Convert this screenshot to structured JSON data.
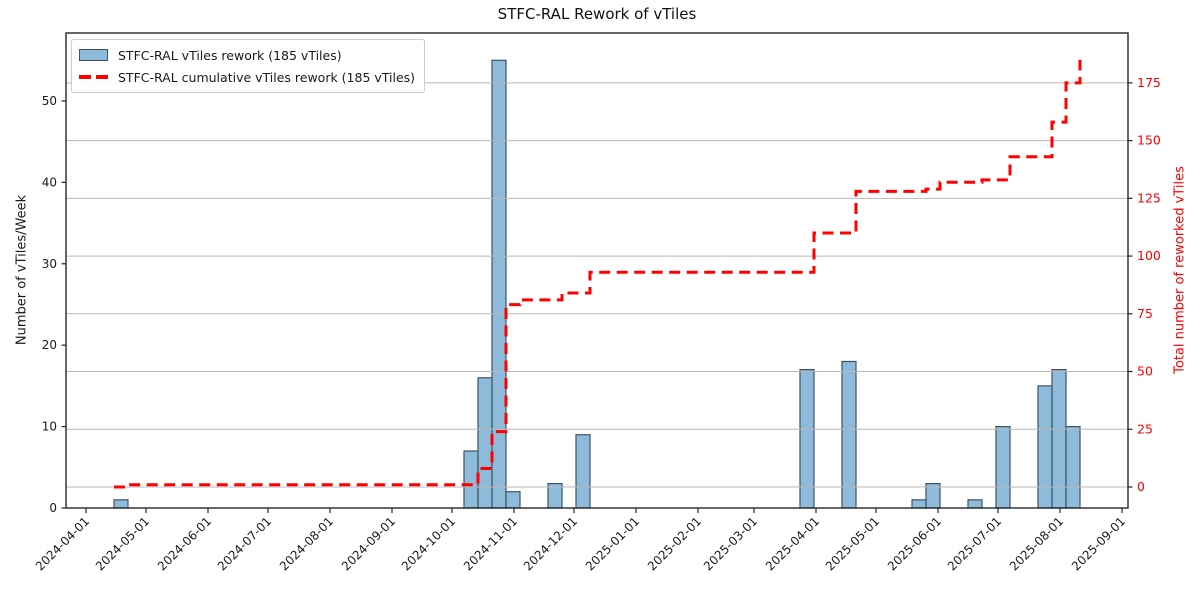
{
  "figure": {
    "title": "STFC-RAL Rework of vTiles"
  },
  "legend": {
    "entries": [
      {
        "label": "STFC-RAL vTiles rework (185 vTiles)",
        "swatch": "bar-patch"
      },
      {
        "label": "STFC-RAL cumulative vTiles rework (185 vTiles)",
        "swatch": "red-dashed-line"
      }
    ]
  },
  "colors": {
    "bar_fill": "#8fbbda",
    "bar_edge": "#3f5265",
    "cumulative_line": "#ff0000",
    "grid": "#b8b8b8",
    "spine": "#262626",
    "tick_text": "#1a1a1a",
    "right_axis_text": "#ff0000",
    "background": "#ffffff"
  },
  "chart_data": {
    "type": "bar",
    "title": "STFC-RAL Rework of vTiles",
    "xlabel": "",
    "ylabel_left": "Number of vTiles/Week",
    "ylabel_right": "Total number of reworked vTiles",
    "legend_position": "upper-left",
    "grid": "horizontal gridlines at right-axis ticks, drawn over bars",
    "bar_width_days": 7,
    "x_range": [
      "2024-03-22",
      "2025-09-04"
    ],
    "left_range": [
      0,
      58.35
    ],
    "right_range": [
      -9.1,
      196.6
    ],
    "left_ticks": [
      0,
      10,
      20,
      30,
      40,
      50
    ],
    "right_ticks": [
      0,
      25,
      50,
      75,
      100,
      125,
      150,
      175
    ],
    "x_tick_labels": [
      "2024-04-01",
      "2024-05-01",
      "2024-06-01",
      "2024-07-01",
      "2024-08-01",
      "2024-09-01",
      "2024-10-01",
      "2024-11-01",
      "2024-12-01",
      "2025-01-01",
      "2025-02-01",
      "2025-03-01",
      "2025-04-01",
      "2025-05-01",
      "2025-06-01",
      "2025-07-01",
      "2025-08-01",
      "2025-09-01"
    ],
    "series": [
      {
        "name": "STFC-RAL vTiles rework (185 vTiles)",
        "type": "bar",
        "total": 185
      },
      {
        "name": "STFC-RAL cumulative vTiles rework (185 vTiles)",
        "type": "step-line-dashed",
        "total": 185
      }
    ],
    "weekly_points": [
      {
        "week_start": "2024-04-15",
        "value": 1,
        "cumulative": 1
      },
      {
        "week_start": "2024-10-07",
        "value": 7,
        "cumulative": 8
      },
      {
        "week_start": "2024-10-14",
        "value": 16,
        "cumulative": 24
      },
      {
        "week_start": "2024-10-21",
        "value": 55,
        "cumulative": 79
      },
      {
        "week_start": "2024-10-28",
        "value": 2,
        "cumulative": 81
      },
      {
        "week_start": "2024-11-18",
        "value": 3,
        "cumulative": 84
      },
      {
        "week_start": "2024-12-02",
        "value": 9,
        "cumulative": 93
      },
      {
        "week_start": "2025-03-24",
        "value": 17,
        "cumulative": 110
      },
      {
        "week_start": "2025-04-14",
        "value": 18,
        "cumulative": 128
      },
      {
        "week_start": "2025-05-19",
        "value": 1,
        "cumulative": 129
      },
      {
        "week_start": "2025-05-26",
        "value": 3,
        "cumulative": 132
      },
      {
        "week_start": "2025-06-16",
        "value": 1,
        "cumulative": 133
      },
      {
        "week_start": "2025-06-30",
        "value": 10,
        "cumulative": 143
      },
      {
        "week_start": "2025-07-21",
        "value": 15,
        "cumulative": 158
      },
      {
        "week_start": "2025-07-28",
        "value": 17,
        "cumulative": 175
      },
      {
        "week_start": "2025-08-04",
        "value": 10,
        "cumulative": 185
      }
    ]
  }
}
